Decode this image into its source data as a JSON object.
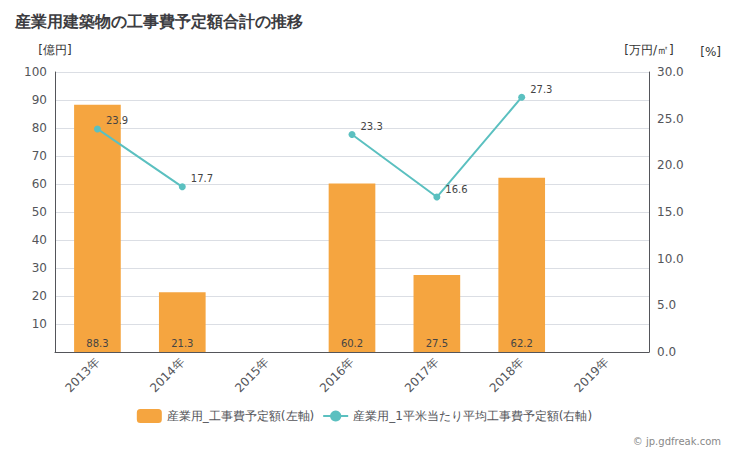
{
  "chart_data": {
    "type": "bar",
    "title": "産業用建築物の工事費予定額合計の推移",
    "categories": [
      "2013年",
      "2014年",
      "2015年",
      "2016年",
      "2017年",
      "2018年",
      "2019年"
    ],
    "series": [
      {
        "name": "産業用_工事費予定額(左軸)",
        "type": "bar",
        "color": "#F5A540",
        "values": [
          88.3,
          21.3,
          null,
          60.2,
          27.5,
          62.2,
          null
        ]
      },
      {
        "name": "産業用_1平米当たり平均工事費予定額(右軸)",
        "type": "line",
        "axis": "y2",
        "color": "#5BC0C0",
        "marker": "circle",
        "values": [
          23.9,
          17.7,
          null,
          23.3,
          16.6,
          27.3,
          null
        ]
      }
    ],
    "y_label": "[億円]",
    "y2_label": "[万円/㎡]",
    "annotations": [
      "[%]",
      "© jp.gdfreak.com"
    ],
    "ylim": [
      0,
      100
    ],
    "yticks": [
      10,
      20,
      30,
      40,
      50,
      60,
      70,
      80,
      90,
      100
    ],
    "y2lim": [
      0,
      30
    ],
    "y2ticks": [
      {
        "value": 0,
        "label": "0.0"
      },
      {
        "value": 5,
        "label": "5.0"
      },
      {
        "value": 10,
        "label": "10.0"
      },
      {
        "value": 15,
        "label": "15.0"
      },
      {
        "value": 20,
        "label": "20.0"
      },
      {
        "value": 25,
        "label": "25.0"
      },
      {
        "value": 30,
        "label": "30.0"
      }
    ],
    "grid": true,
    "legend": "bottom",
    "data_labels": true
  }
}
